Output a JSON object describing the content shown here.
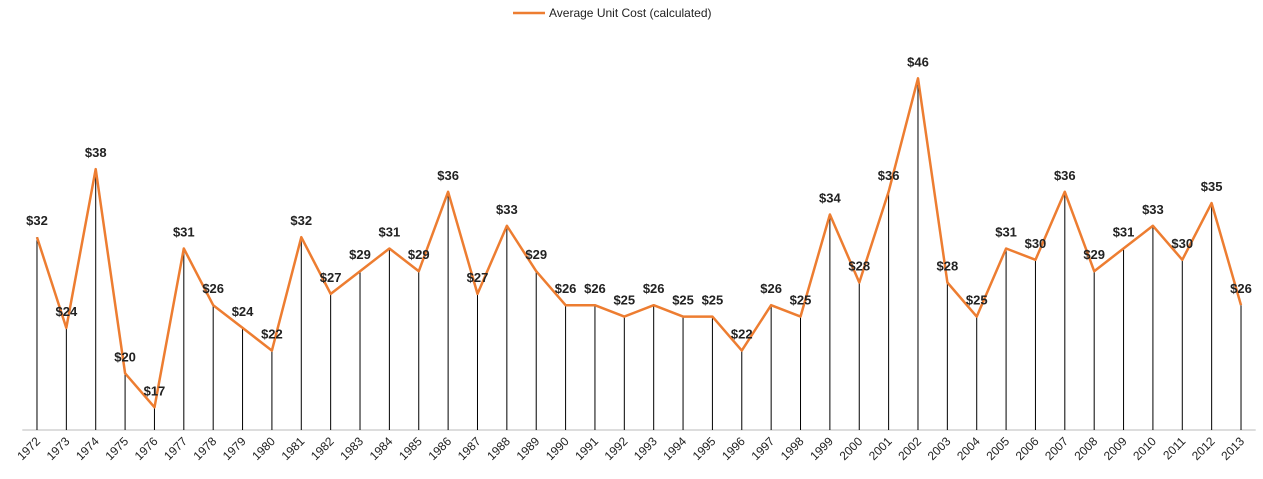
{
  "chart_data": {
    "type": "line",
    "categories": [
      "1972",
      "1973",
      "1974",
      "1975",
      "1976",
      "1977",
      "1978",
      "1979",
      "1980",
      "1981",
      "1982",
      "1983",
      "1984",
      "1985",
      "1986",
      "1987",
      "1988",
      "1989",
      "1990",
      "1991",
      "1992",
      "1993",
      "1994",
      "1995",
      "1996",
      "1997",
      "1998",
      "1999",
      "2000",
      "2001",
      "2002",
      "2003",
      "2004",
      "2005",
      "2006",
      "2007",
      "2008",
      "2009",
      "2010",
      "2011",
      "2012",
      "2013"
    ],
    "series": [
      {
        "name": "Average Unit Cost (calculated)",
        "color": "#ed7d31",
        "values": [
          32,
          24,
          38,
          20,
          17,
          31,
          26,
          24,
          22,
          32,
          27,
          29,
          31,
          29,
          36,
          27,
          33,
          29,
          26,
          26,
          25,
          26,
          25,
          25,
          22,
          26,
          25,
          34,
          28,
          36,
          46,
          28,
          25,
          31,
          30,
          36,
          29,
          31,
          33,
          30,
          35,
          26
        ],
        "value_labels": [
          "$32",
          "$24",
          "$38",
          "$20",
          "$17",
          "$31",
          "$26",
          "$24",
          "$22",
          "$32",
          "$27",
          "$29",
          "$31",
          "$29",
          "$36",
          "$27",
          "$33",
          "$29",
          "$26",
          "$26",
          "$25",
          "$26",
          "$25",
          "$25",
          "$22",
          "$26",
          "$25",
          "$34",
          "$28",
          "$36",
          "$46",
          "$28",
          "$25",
          "$31",
          "$30",
          "$36",
          "$29",
          "$31",
          "$33",
          "$30",
          "$35",
          "$26"
        ]
      }
    ],
    "ylim": [
      15,
      47
    ],
    "drop_lines": true,
    "legend": "top"
  }
}
